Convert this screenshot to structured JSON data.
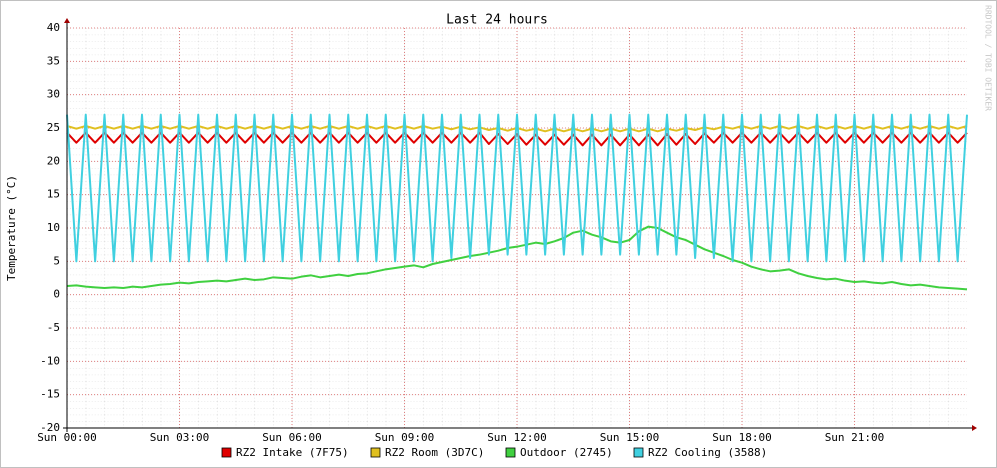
{
  "chart_data": {
    "type": "line",
    "title": "Last 24 hours",
    "y_label": "Temperature (°C)",
    "watermark": "RRDTOOL / TOBI OETIKER",
    "x": [
      0,
      0.25,
      0.5,
      0.75,
      1,
      1.25,
      1.5,
      1.75,
      2,
      2.25,
      2.5,
      2.75,
      3,
      3.25,
      3.5,
      3.75,
      4,
      4.25,
      4.5,
      4.75,
      5,
      5.25,
      5.5,
      5.75,
      6,
      6.25,
      6.5,
      6.75,
      7,
      7.25,
      7.5,
      7.75,
      8,
      8.25,
      8.5,
      8.75,
      9,
      9.25,
      9.5,
      9.75,
      10,
      10.25,
      10.5,
      10.75,
      11,
      11.25,
      11.5,
      11.75,
      12,
      12.25,
      12.5,
      12.75,
      13,
      13.25,
      13.5,
      13.75,
      14,
      14.25,
      14.5,
      14.75,
      15,
      15.25,
      15.5,
      15.75,
      16,
      16.25,
      16.5,
      16.75,
      17,
      17.25,
      17.5,
      17.75,
      18,
      18.25,
      18.5,
      18.75,
      19,
      19.25,
      19.5,
      19.75,
      20,
      20.25,
      20.5,
      20.75,
      21,
      21.25,
      21.5,
      21.75,
      22,
      22.25,
      22.5,
      22.75,
      23,
      23.25,
      23.5,
      23.75,
      24
    ],
    "xlim": [
      0,
      24
    ],
    "xticks": [
      {
        "value": 0,
        "label": "Sun 00:00"
      },
      {
        "value": 3,
        "label": "Sun 03:00"
      },
      {
        "value": 6,
        "label": "Sun 06:00"
      },
      {
        "value": 9,
        "label": "Sun 09:00"
      },
      {
        "value": 12,
        "label": "Sun 12:00"
      },
      {
        "value": 15,
        "label": "Sun 15:00"
      },
      {
        "value": 18,
        "label": "Sun 18:00"
      },
      {
        "value": 21,
        "label": "Sun 21:00"
      }
    ],
    "ylim": [
      -20,
      40
    ],
    "yticks": [
      -20,
      -15,
      -10,
      -5,
      0,
      5,
      10,
      15,
      20,
      25,
      30,
      35,
      40
    ],
    "grid": true,
    "series": [
      {
        "name": "RZ2 Intake (7F75)",
        "color": "#e00000",
        "values": [
          24.3,
          22.8,
          24.3,
          22.8,
          24.3,
          22.8,
          24.3,
          22.8,
          24.3,
          22.8,
          24.3,
          22.8,
          24.3,
          22.8,
          24.3,
          22.8,
          24.3,
          22.8,
          24.3,
          22.8,
          24.3,
          22.8,
          24.3,
          22.8,
          24.3,
          22.8,
          24.3,
          22.8,
          24.3,
          22.8,
          24.3,
          22.8,
          24.3,
          22.8,
          24.3,
          22.8,
          24.3,
          22.8,
          24.3,
          22.8,
          24.3,
          22.8,
          24.3,
          22.8,
          24.3,
          22.6,
          24.1,
          22.6,
          24.1,
          22.5,
          24.0,
          22.5,
          24.0,
          22.5,
          24.0,
          22.4,
          24.0,
          22.4,
          24.0,
          22.4,
          24.0,
          22.4,
          24.0,
          22.4,
          24.1,
          22.5,
          24.1,
          22.6,
          24.2,
          22.8,
          24.3,
          22.8,
          24.3,
          22.8,
          24.3,
          22.8,
          24.3,
          22.8,
          24.3,
          22.8,
          24.3,
          22.8,
          24.3,
          22.8,
          24.3,
          22.8,
          24.3,
          22.8,
          24.3,
          22.8,
          24.3,
          22.8,
          24.3,
          22.8,
          24.3,
          22.8,
          24.3
        ]
      },
      {
        "name": "RZ2 Room (3D7C)",
        "color": "#e0c020",
        "values": [
          25.3,
          24.9,
          25.3,
          24.9,
          25.3,
          24.9,
          25.3,
          24.9,
          25.3,
          24.9,
          25.3,
          24.9,
          25.3,
          24.9,
          25.3,
          24.9,
          25.3,
          24.9,
          25.3,
          24.9,
          25.3,
          24.9,
          25.3,
          24.9,
          25.3,
          24.9,
          25.3,
          24.9,
          25.3,
          24.9,
          25.3,
          24.9,
          25.3,
          24.9,
          25.3,
          24.9,
          25.3,
          24.9,
          25.3,
          24.9,
          25.2,
          24.8,
          25.2,
          24.8,
          25.1,
          24.7,
          25.0,
          24.6,
          25.0,
          24.6,
          24.9,
          24.5,
          24.9,
          24.5,
          24.9,
          24.5,
          24.9,
          24.5,
          24.9,
          24.5,
          24.9,
          24.5,
          24.9,
          24.5,
          24.9,
          24.6,
          25.0,
          24.7,
          25.1,
          24.8,
          25.2,
          24.9,
          25.3,
          24.9,
          25.3,
          24.9,
          25.3,
          24.9,
          25.3,
          24.9,
          25.3,
          24.9,
          25.3,
          24.9,
          25.3,
          24.9,
          25.3,
          24.9,
          25.3,
          24.9,
          25.3,
          24.9,
          25.3,
          24.9,
          25.3,
          24.9,
          25.3
        ]
      },
      {
        "name": "Outdoor (2745)",
        "color": "#40d040",
        "values": [
          1.3,
          1.4,
          1.2,
          1.1,
          1.0,
          1.1,
          1.0,
          1.2,
          1.1,
          1.3,
          1.5,
          1.6,
          1.8,
          1.7,
          1.9,
          2.0,
          2.1,
          2.0,
          2.2,
          2.4,
          2.2,
          2.3,
          2.6,
          2.5,
          2.4,
          2.7,
          2.9,
          2.6,
          2.8,
          3.0,
          2.8,
          3.1,
          3.2,
          3.5,
          3.8,
          4.0,
          4.2,
          4.4,
          4.1,
          4.6,
          4.9,
          5.2,
          5.5,
          5.8,
          6.0,
          6.3,
          6.6,
          7.0,
          7.2,
          7.5,
          7.8,
          7.6,
          8.0,
          8.5,
          9.3,
          9.6,
          9.0,
          8.6,
          8.0,
          7.8,
          8.2,
          9.5,
          10.2,
          10.0,
          9.3,
          8.6,
          8.2,
          7.5,
          6.8,
          6.3,
          5.8,
          5.2,
          4.8,
          4.2,
          3.8,
          3.5,
          3.6,
          3.8,
          3.2,
          2.8,
          2.5,
          2.3,
          2.4,
          2.1,
          1.9,
          2.0,
          1.8,
          1.7,
          1.9,
          1.6,
          1.4,
          1.5,
          1.3,
          1.1,
          1.0,
          0.9,
          0.8
        ]
      },
      {
        "name": "RZ2 Cooling (3588)",
        "color": "#40d0e0",
        "values": [
          27,
          5,
          27,
          5,
          27,
          5,
          27,
          5,
          27,
          5,
          27,
          5,
          27,
          5,
          27,
          5,
          27,
          5,
          27,
          5,
          27,
          5,
          27,
          5,
          27,
          5,
          27,
          5,
          27,
          5,
          27,
          5,
          27,
          5,
          27,
          5,
          27,
          5,
          27,
          5,
          27,
          5.5,
          27,
          5.5,
          27,
          6,
          27,
          6,
          27,
          6,
          27,
          6,
          27,
          6,
          27,
          6,
          27,
          6,
          27,
          6,
          27,
          6,
          27,
          6,
          27,
          6,
          27,
          5.5,
          27,
          5.5,
          27,
          5,
          27,
          5,
          27,
          5,
          27,
          5,
          27,
          5,
          27,
          5,
          27,
          5,
          27,
          5,
          27,
          5,
          27,
          5,
          27,
          5,
          27,
          5,
          27,
          5,
          27
        ]
      }
    ]
  }
}
